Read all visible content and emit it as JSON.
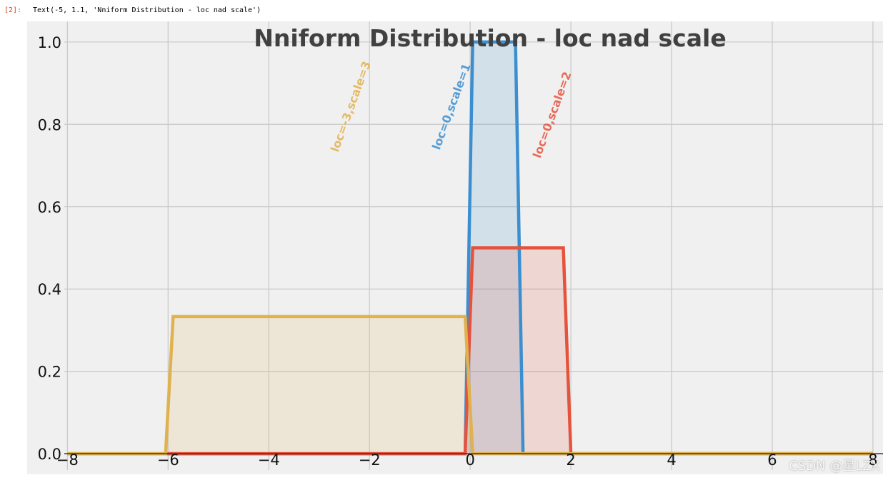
{
  "notebook": {
    "prompt": "[2]:",
    "output_text": "Text(-5, 1.1, 'Nniform Distribution - loc nad scale')"
  },
  "watermark": "CSDN @星LZX",
  "colors": {
    "background": "#f0f0f0",
    "grid": "#cbcbcb",
    "blue": "#3b8ed0",
    "red": "#e5533d",
    "yellow": "#e0b24f",
    "title": "#404040"
  },
  "chart_data": {
    "type": "area",
    "title": "Nniform Distribution - loc nad scale",
    "xlabel": "",
    "ylabel": "",
    "xlim": [
      -8.8,
      8.2
    ],
    "ylim": [
      -0.05,
      1.05
    ],
    "xticks": [
      -8,
      -6,
      -4,
      -2,
      0,
      2,
      4,
      6,
      8
    ],
    "xtick_labels": [
      "−8",
      "−6",
      "−4",
      "−2",
      "0",
      "2",
      "4",
      "6",
      "8"
    ],
    "yticks": [
      0.0,
      0.2,
      0.4,
      0.6,
      0.8,
      1.0
    ],
    "ytick_labels": [
      "0.0",
      "0.2",
      "0.4",
      "0.6",
      "0.8",
      "1.0"
    ],
    "grid": true,
    "series": [
      {
        "label": "loc=0,scale=1",
        "color": "#3b8ed0",
        "x": [
          -8,
          -0.1,
          0.05,
          0.9,
          1.05,
          8
        ],
        "y": [
          0,
          0,
          1.0,
          1.0,
          0,
          0
        ],
        "annotation": {
          "x": -0.3,
          "y": 0.84,
          "rotation": -70
        }
      },
      {
        "label": "loc=0,scale=2",
        "color": "#e5533d",
        "x": [
          -6,
          -0.1,
          0.05,
          1.85,
          2.0,
          8
        ],
        "y": [
          0,
          0,
          0.5,
          0.5,
          0,
          0
        ],
        "annotation": {
          "x": 1.7,
          "y": 0.82,
          "rotation": -70
        }
      },
      {
        "label": "loc=-3,scale=3",
        "color": "#e0b24f",
        "x": [
          -8,
          -6.05,
          -5.9,
          -0.1,
          0.05,
          8
        ],
        "y": [
          0,
          0,
          0.333,
          0.333,
          0,
          0
        ],
        "annotation": {
          "x": -2.3,
          "y": 0.84,
          "rotation": -70
        }
      }
    ],
    "hline": 0
  }
}
